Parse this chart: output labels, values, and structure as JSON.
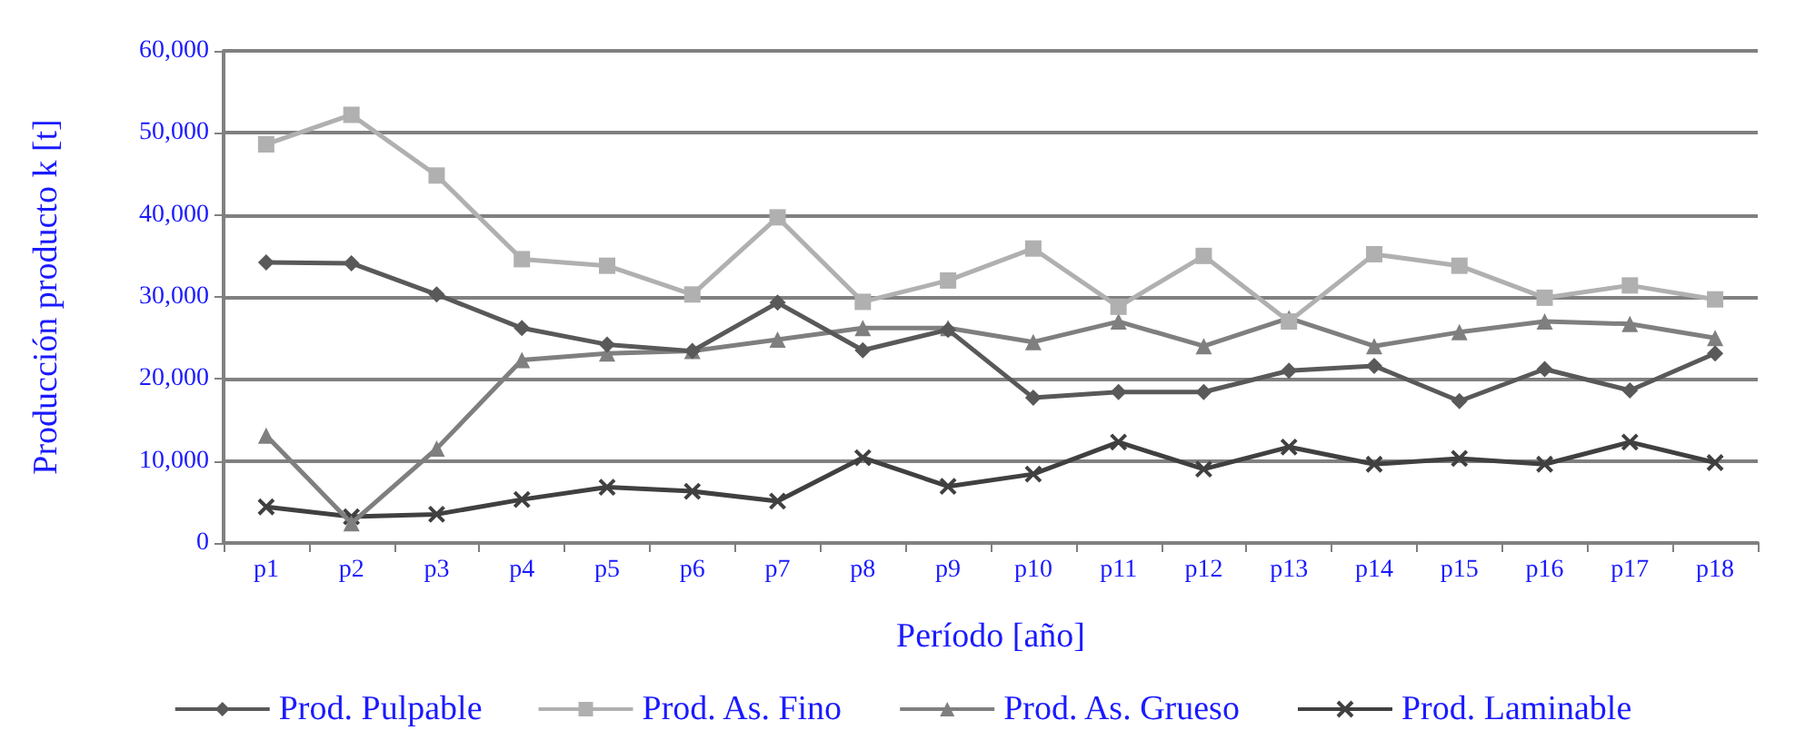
{
  "chart_data": {
    "type": "line",
    "xlabel": "Período [año]",
    "ylabel": "Producción producto k [t]",
    "categories": [
      "p1",
      "p2",
      "p3",
      "p4",
      "p5",
      "p6",
      "p7",
      "p8",
      "p9",
      "p10",
      "p11",
      "p12",
      "p13",
      "p14",
      "p15",
      "p16",
      "p17",
      "p18"
    ],
    "series": [
      {
        "name": "Prod. Pulpable",
        "color": "#595959",
        "marker": "diamond",
        "values": [
          34200,
          34100,
          30300,
          26200,
          24200,
          23400,
          29300,
          23500,
          26000,
          17700,
          18400,
          18400,
          21000,
          21600,
          17300,
          21200,
          18600,
          23100
        ]
      },
      {
        "name": "Prod. As. Fino",
        "color": "#b0b0b0",
        "marker": "square",
        "values": [
          48600,
          52200,
          44800,
          34600,
          33800,
          30300,
          39700,
          29400,
          32000,
          35900,
          28800,
          35000,
          27000,
          35200,
          33800,
          29900,
          31400,
          29700
        ]
      },
      {
        "name": "Prod. As. Grueso",
        "color": "#7f7f7f",
        "marker": "triangle",
        "values": [
          13100,
          2400,
          11500,
          22300,
          23100,
          23400,
          24800,
          26200,
          26200,
          24500,
          27000,
          24000,
          27400,
          24000,
          25700,
          27000,
          26700,
          25000
        ]
      },
      {
        "name": "Prod. Laminable",
        "color": "#404040",
        "marker": "cross",
        "values": [
          4400,
          3200,
          3500,
          5300,
          6800,
          6300,
          5100,
          10400,
          6900,
          8400,
          12300,
          9000,
          11700,
          9600,
          10300,
          9600,
          12300,
          9800
        ]
      }
    ],
    "ylim": [
      0,
      60000
    ],
    "yticks": [
      {
        "value": 0,
        "label": "0"
      },
      {
        "value": 10000,
        "label": "10,000"
      },
      {
        "value": 20000,
        "label": "20,000"
      },
      {
        "value": 30000,
        "label": "30,000"
      },
      {
        "value": 40000,
        "label": "40,000"
      },
      {
        "value": 50000,
        "label": "50,000"
      },
      {
        "value": 60000,
        "label": "60,000"
      }
    ],
    "grid": "y",
    "legend": "bottom",
    "line_style": "solid"
  }
}
